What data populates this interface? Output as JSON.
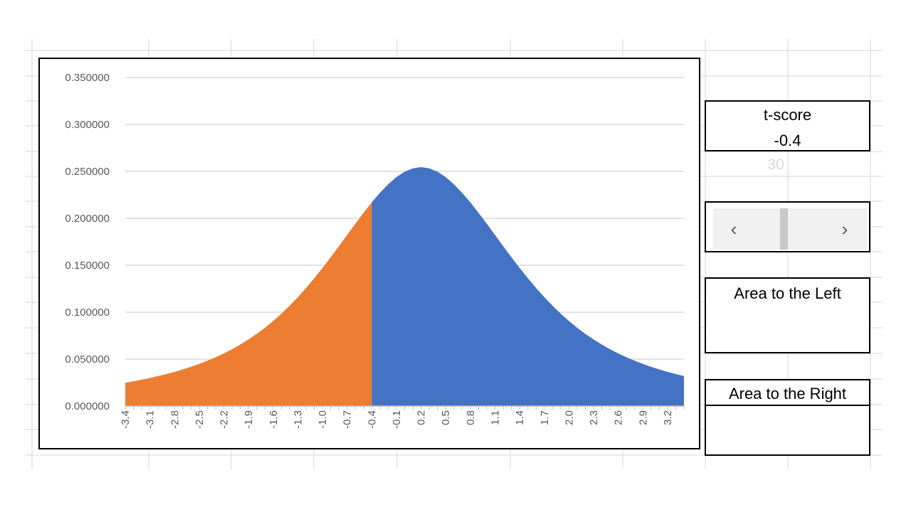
{
  "chart_data": {
    "type": "area",
    "title": "",
    "xlabel": "",
    "ylabel": "",
    "grid": true,
    "legend": "none",
    "ylim": [
      0,
      0.35
    ],
    "y_ticks": [
      "0.000000",
      "0.050000",
      "0.100000",
      "0.150000",
      "0.200000",
      "0.250000",
      "0.300000",
      "0.350000"
    ],
    "x_ticks": [
      "-3.4",
      "-3.1",
      "-2.8",
      "-2.5",
      "-2.2",
      "-1.9",
      "-1.6",
      "-1.3",
      "-1.0",
      "-0.7",
      "-0.4",
      "-0.1",
      "0.2",
      "0.5",
      "0.8",
      "1.1",
      "1.4",
      "1.7",
      "2.0",
      "2.3",
      "2.6",
      "2.9",
      "3.2"
    ],
    "x": [
      -3.4,
      -3.3,
      -3.2,
      -3.1,
      -3.0,
      -2.9,
      -2.8,
      -2.7,
      -2.6,
      -2.5,
      -2.4,
      -2.3,
      -2.2,
      -2.1,
      -2.0,
      -1.9,
      -1.8,
      -1.7,
      -1.6,
      -1.5,
      -1.4,
      -1.3,
      -1.2,
      -1.1,
      -1.0,
      -0.9,
      -0.8,
      -0.7,
      -0.6,
      -0.5,
      -0.4,
      -0.3,
      -0.2,
      -0.1,
      0.0,
      0.1,
      0.2,
      0.3,
      0.4,
      0.5,
      0.6,
      0.7,
      0.8,
      0.9,
      1.0,
      1.1,
      1.2,
      1.3,
      1.4,
      1.5,
      1.6,
      1.7,
      1.8,
      1.9,
      2.0,
      2.1,
      2.2,
      2.3,
      2.4,
      2.5,
      2.6,
      2.7,
      2.8,
      2.9,
      3.0,
      3.1,
      3.2,
      3.3,
      3.4
    ],
    "y": [
      0.0247,
      0.0263,
      0.0281,
      0.0299,
      0.0319,
      0.0341,
      0.0364,
      0.039,
      0.0418,
      0.0449,
      0.0483,
      0.052,
      0.0561,
      0.0605,
      0.0655,
      0.0709,
      0.0769,
      0.0834,
      0.0906,
      0.0984,
      0.1069,
      0.116,
      0.1258,
      0.1362,
      0.1471,
      0.1585,
      0.1703,
      0.1823,
      0.1942,
      0.2058,
      0.217,
      0.2272,
      0.2363,
      0.2439,
      0.2496,
      0.2532,
      0.2545,
      0.2532,
      0.2496,
      0.2439,
      0.2363,
      0.2272,
      0.217,
      0.2058,
      0.1942,
      0.1823,
      0.1703,
      0.1585,
      0.1471,
      0.1362,
      0.1258,
      0.116,
      0.1069,
      0.0984,
      0.0906,
      0.0834,
      0.0769,
      0.0709,
      0.0655,
      0.0605,
      0.0561,
      0.052,
      0.0483,
      0.0449,
      0.0418,
      0.039,
      0.0364,
      0.0341,
      0.0319
    ],
    "series": [
      {
        "color": "#ED7D31",
        "x_range": [
          -3.4,
          -0.4
        ]
      },
      {
        "color": "#4472C4",
        "x_range": [
          -0.4,
          3.4
        ]
      }
    ]
  },
  "controls": {
    "tscore_label": "t-score",
    "tscore_value": "-0.4",
    "hidden_value": "30",
    "scroll_left_glyph": "‹",
    "scroll_right_glyph": "›",
    "scroll_level": 0.46,
    "area_left_label": "Area to the Left",
    "area_right_label": "Area to the Right"
  }
}
